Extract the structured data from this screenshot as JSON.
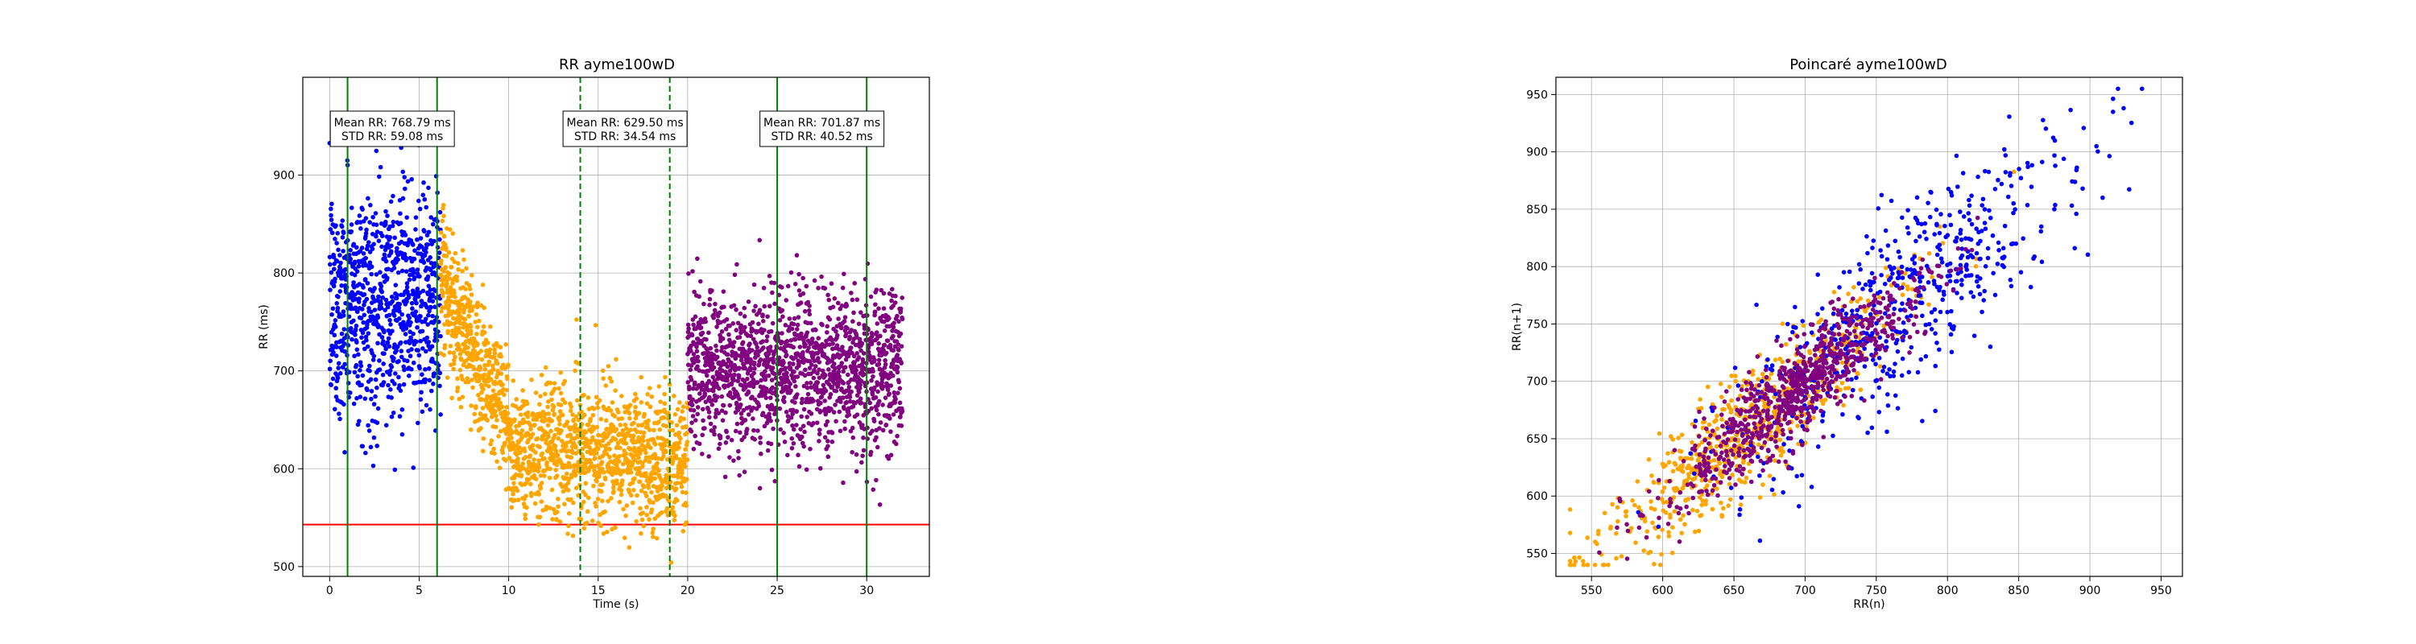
{
  "chart_data": [
    {
      "type": "scatter",
      "title": "RR ayme100wD",
      "xlabel": "Time (s)",
      "ylabel": "RR (ms)",
      "xlim": [
        -1.5,
        33.5
      ],
      "ylim": [
        490,
        1000
      ],
      "xticks": [
        0,
        5,
        10,
        15,
        20,
        25,
        30
      ],
      "yticks": [
        500,
        600,
        700,
        800,
        900
      ],
      "grid": true,
      "colors": {
        "baseline": "#0000ff",
        "recovery": "#ffa500",
        "post": "#800080",
        "threshold": "#ff0000",
        "window": "#008000"
      },
      "threshold_y": 543,
      "segments": [
        {
          "start": 0,
          "end": 6.2,
          "mean": 768.79,
          "std": 59.08,
          "color": "#0000ff"
        },
        {
          "start": 6.2,
          "end": 20,
          "mean": 629.5,
          "std": 34.54,
          "color": "#ffa500",
          "ramp": {
            "from": 790,
            "to": 650,
            "until": 10
          }
        },
        {
          "start": 20,
          "end": 32,
          "mean": 701.87,
          "std": 40.52,
          "color": "#800080"
        }
      ],
      "vlines": [
        {
          "x": 1,
          "style": "solid"
        },
        {
          "x": 6,
          "style": "solid"
        },
        {
          "x": 14,
          "style": "dashed"
        },
        {
          "x": 19,
          "style": "dashed"
        },
        {
          "x": 25,
          "style": "solid"
        },
        {
          "x": 30,
          "style": "solid"
        }
      ],
      "annotations": [
        {
          "x": 3.5,
          "line1": "Mean RR: 768.79 ms",
          "line2": "STD RR: 59.08 ms"
        },
        {
          "x": 16.5,
          "line1": "Mean RR: 629.50 ms",
          "line2": "STD RR: 34.54 ms"
        },
        {
          "x": 27.5,
          "line1": "Mean RR: 701.87 ms",
          "line2": "STD RR: 40.52 ms"
        }
      ]
    },
    {
      "type": "scatter",
      "title": "Poincaré ayme100wD",
      "xlabel": "RR(n)",
      "ylabel": "RR(n+1)",
      "xlim": [
        525,
        965
      ],
      "ylim": [
        530,
        965
      ],
      "xticks": [
        550,
        600,
        650,
        700,
        750,
        800,
        850,
        900,
        950
      ],
      "yticks": [
        550,
        600,
        650,
        700,
        750,
        800,
        850,
        900,
        950
      ],
      "grid": true,
      "series": [
        {
          "color": "#ffa500",
          "count": 700,
          "center": 660,
          "spread": 55,
          "noise": 25
        },
        {
          "color": "#0000ff",
          "count": 550,
          "center": 770,
          "spread": 60,
          "noise": 40
        },
        {
          "color": "#800080",
          "count": 800,
          "center": 695,
          "spread": 45,
          "noise": 20
        }
      ]
    }
  ]
}
